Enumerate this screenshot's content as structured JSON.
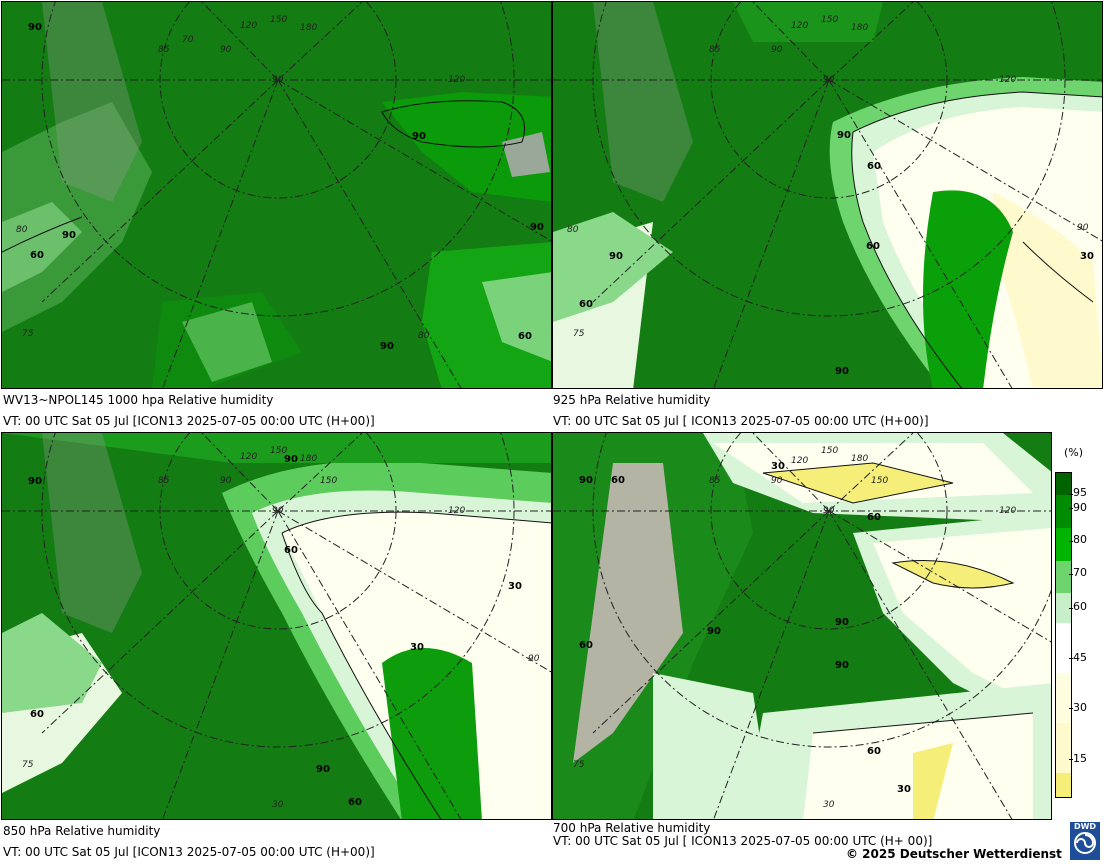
{
  "panels": [
    {
      "id": "p1000",
      "title": "WV13~NPOL145 1000 hpa Relative humidity",
      "vt": "VT: 00 UTC Sat  05 Jul [ICON13 2025-07-05 00:00 UTC  (H+00)]",
      "contour_labels": [
        "90",
        "90",
        "60",
        "90",
        "90",
        "60",
        "90"
      ],
      "grid_labels": [
        "120",
        "150",
        "180",
        "85",
        "90",
        "90",
        "120",
        "80",
        "75",
        "80",
        "70"
      ]
    },
    {
      "id": "p925",
      "title": "925 hPa Relative humidity",
      "vt": "VT: 00 UTC Sat  05 Jul [ ICON13 2025-07-05 00:00 UTC  (H+00)]",
      "contour_labels": [
        "90",
        "60",
        "60",
        "90",
        "30",
        "90",
        "60"
      ],
      "grid_labels": [
        "120",
        "150",
        "180",
        "85",
        "90",
        "90",
        "120",
        "80",
        "75",
        "90"
      ]
    },
    {
      "id": "p850",
      "title": "850 hPa  Relative humidity",
      "vt": "VT: 00 UTC Sat  05 Jul [ICON13 2025-07-05 00:00 UTC  (H+00)]",
      "contour_labels": [
        "90",
        "90",
        "60",
        "30",
        "30",
        "90",
        "60",
        "60"
      ],
      "grid_labels": [
        "120",
        "150",
        "180",
        "85",
        "90",
        "90",
        "150",
        "120",
        "90",
        "75",
        "30"
      ]
    },
    {
      "id": "p700",
      "title": "700 hPa Relative humidity",
      "vt": "VT: 00 UTC Sat  05 Jul [ ICON13 2025-07-05 00:00 UTC  (H+ 00)]",
      "contour_labels": [
        "30",
        "90",
        "60",
        "60",
        "90",
        "90",
        "90",
        "60",
        "60",
        "30"
      ],
      "grid_labels": [
        "120",
        "150",
        "180",
        "85",
        "90",
        "90",
        "150",
        "120",
        "75",
        "30"
      ]
    }
  ],
  "legend": {
    "unit": "(%)",
    "ticks": [
      "95",
      "90",
      "80",
      "70",
      "60",
      "45",
      "30",
      "15"
    ],
    "colors": [
      "#006400",
      "#008c00",
      "#00b400",
      "#6ed46e",
      "#c8f0c8",
      "#ffffff",
      "#fffacd",
      "#f5ee78",
      "#e8e040"
    ]
  },
  "footer": {
    "copyright": "© 2025 Deutscher Wetterdienst",
    "logo": "DWD"
  }
}
